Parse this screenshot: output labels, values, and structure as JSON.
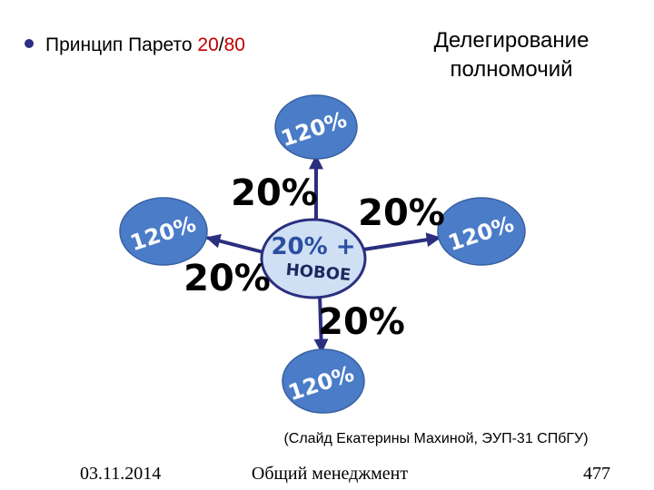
{
  "header": {
    "bullet_text": "Принцип Парето",
    "ratio_a": "20",
    "ratio_sep": "/",
    "ratio_b": "80"
  },
  "title_lines": [
    "Делегирование",
    "полномочий"
  ],
  "diagram": {
    "center_lines": [
      "20% +",
      "НОВОЕ"
    ],
    "nodes": [
      {
        "label": "120%"
      },
      {
        "label": "120%"
      },
      {
        "label": "120%"
      },
      {
        "label": "120%"
      }
    ],
    "arrow_labels": [
      "20%",
      "20%",
      "20%",
      "20%"
    ]
  },
  "caption": "(Слайд Екатерины Махиной, ЭУП-31 СПбГУ)",
  "footer": {
    "date": "03.11.2014",
    "course": "Общий менеджмент",
    "page": "477"
  }
}
